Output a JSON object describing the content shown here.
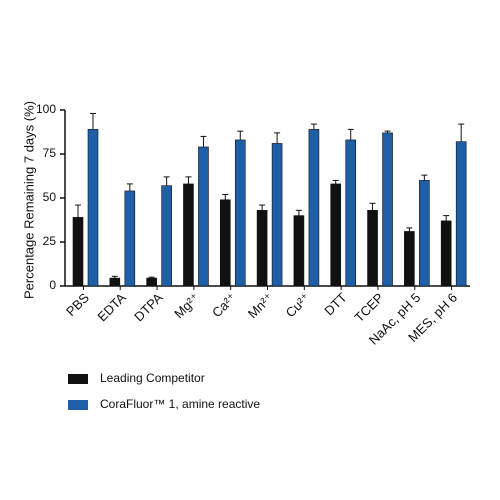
{
  "chart_data": {
    "type": "bar",
    "y_label": "Percentage Remaining 7 days (%)",
    "categories": [
      "PBS",
      "EDTA",
      "DTPA",
      "Mg²⁺",
      "Ca²⁺",
      "Mn²⁺",
      "Cu²⁺",
      "DTT",
      "TCEP",
      "NaAc, pH 5",
      "MES, pH 6"
    ],
    "series": [
      {
        "name": "Leading Competitor",
        "color": "#111111",
        "values": [
          39,
          4.5,
          4.5,
          58,
          49,
          43,
          40,
          58,
          43,
          31,
          37
        ],
        "errors": [
          7,
          1,
          0.5,
          4,
          3,
          3,
          3,
          2,
          4,
          2,
          3
        ]
      },
      {
        "name": "CoraFluor™ 1, amine reactive",
        "color": "#1f5fa8",
        "values": [
          89,
          54,
          57,
          79,
          83,
          81,
          89,
          83,
          87,
          60,
          82
        ],
        "errors": [
          9,
          4,
          5,
          6,
          5,
          6,
          3,
          6,
          1,
          3,
          10
        ]
      }
    ],
    "ylim": [
      0,
      100
    ],
    "yticks": [
      0,
      25,
      50,
      75,
      100
    ],
    "grid": false
  }
}
